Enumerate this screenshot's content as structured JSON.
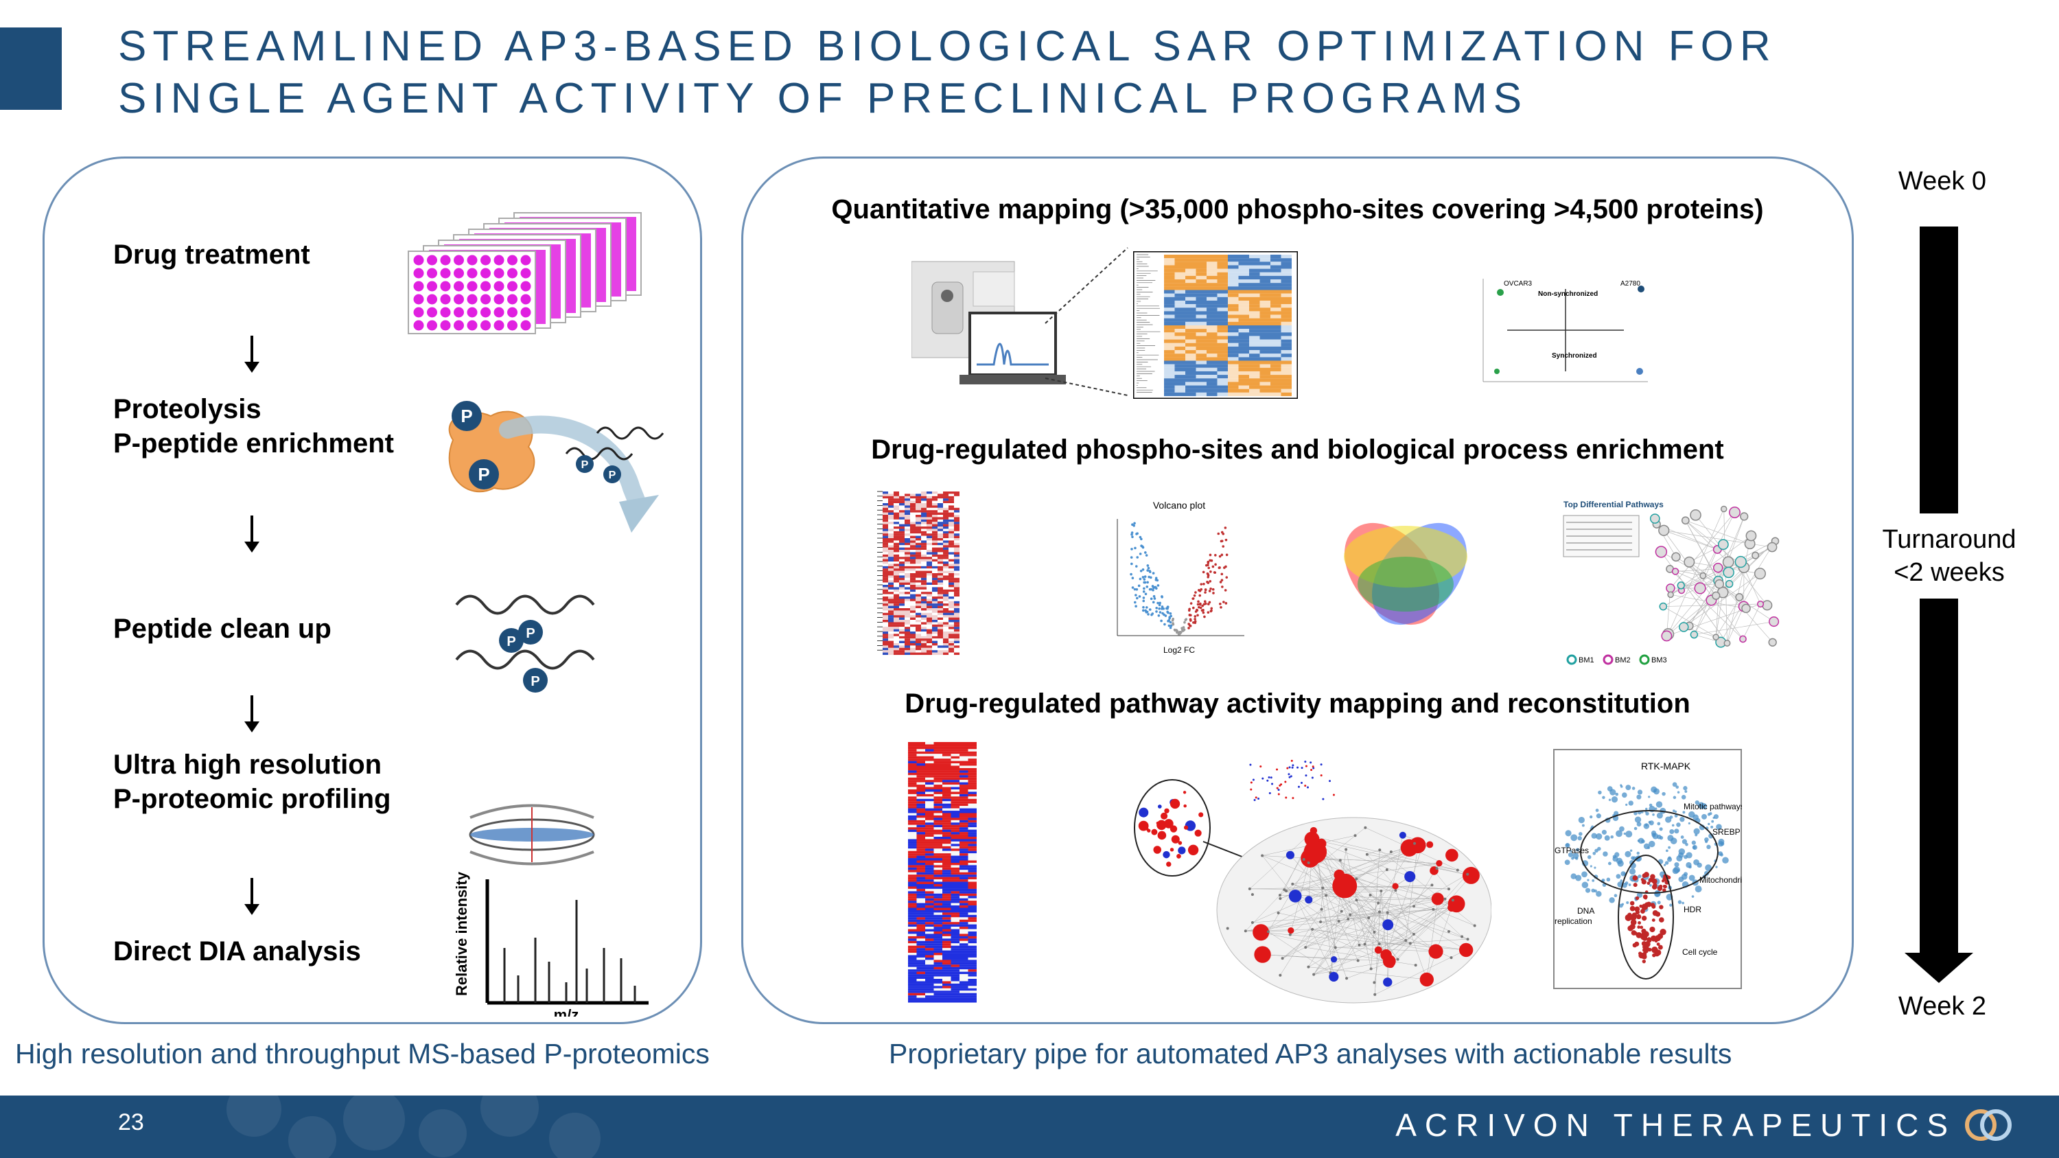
{
  "title": {
    "line1": "STREAMLINED AP3-BASED BIOLOGICAL SAR OPTIMIZATION FOR",
    "line2": "SINGLE AGENT ACTIVITY OF PRECLINICAL PROGRAMS"
  },
  "left_panel": {
    "steps": [
      {
        "line1": "Drug treatment",
        "line2": ""
      },
      {
        "line1": "Proteolysis",
        "line2": "P-peptide enrichment"
      },
      {
        "line1": "Peptide clean up",
        "line2": ""
      },
      {
        "line1": "Ultra high resolution",
        "line2": "P-proteomic profiling"
      },
      {
        "line1": "Direct DIA analysis",
        "line2": ""
      }
    ],
    "phospho_label": "P",
    "spectrum_ylabel": "Relative intensity",
    "spectrum_xlabel": "m/z",
    "caption": "High resolution and throughput MS-based P-proteomics"
  },
  "right_panel": {
    "sections": [
      {
        "title": "Quantitative mapping (>35,000 phospho-sites covering >4,500 proteins)"
      },
      {
        "title": "Drug-regulated phospho-sites and biological process enrichment"
      },
      {
        "title": "Drug-regulated pathway activity mapping and reconstitution"
      }
    ],
    "scatter_labels": {
      "ovcar3": "OVCAR3",
      "a2780": "A2780",
      "non_sync": "Non-synchronized",
      "sync": "Synchronized"
    },
    "volcano_title": "Volcano plot",
    "volcano_xlabel": "Log2 FC",
    "pathway_title": "Top Differential Pathways",
    "pathway_legend": [
      "BM1",
      "BM2",
      "BM3"
    ],
    "cluster_labels": [
      "RTK-MAPK",
      "Mitotic pathways",
      "SREBP",
      "GTPases",
      "Mitochondria",
      "DNA",
      "replication",
      "HDR",
      "Cell cycle"
    ],
    "caption": "Proprietary pipe for automated AP3 analyses with actionable results"
  },
  "timeline": {
    "start": "Week 0",
    "middle_line1": "Turnaround",
    "middle_line2": "<2 weeks",
    "end": "Week 2"
  },
  "footer": {
    "page_number": "23",
    "company": "ACRIVON THERAPEUTICS"
  },
  "colors": {
    "brand_blue": "#1e4d78",
    "panel_border": "#6c8fb5",
    "magenta": "#e020e0",
    "heat_orange": "#f0a040",
    "heat_blue": "#4a7fc0"
  }
}
